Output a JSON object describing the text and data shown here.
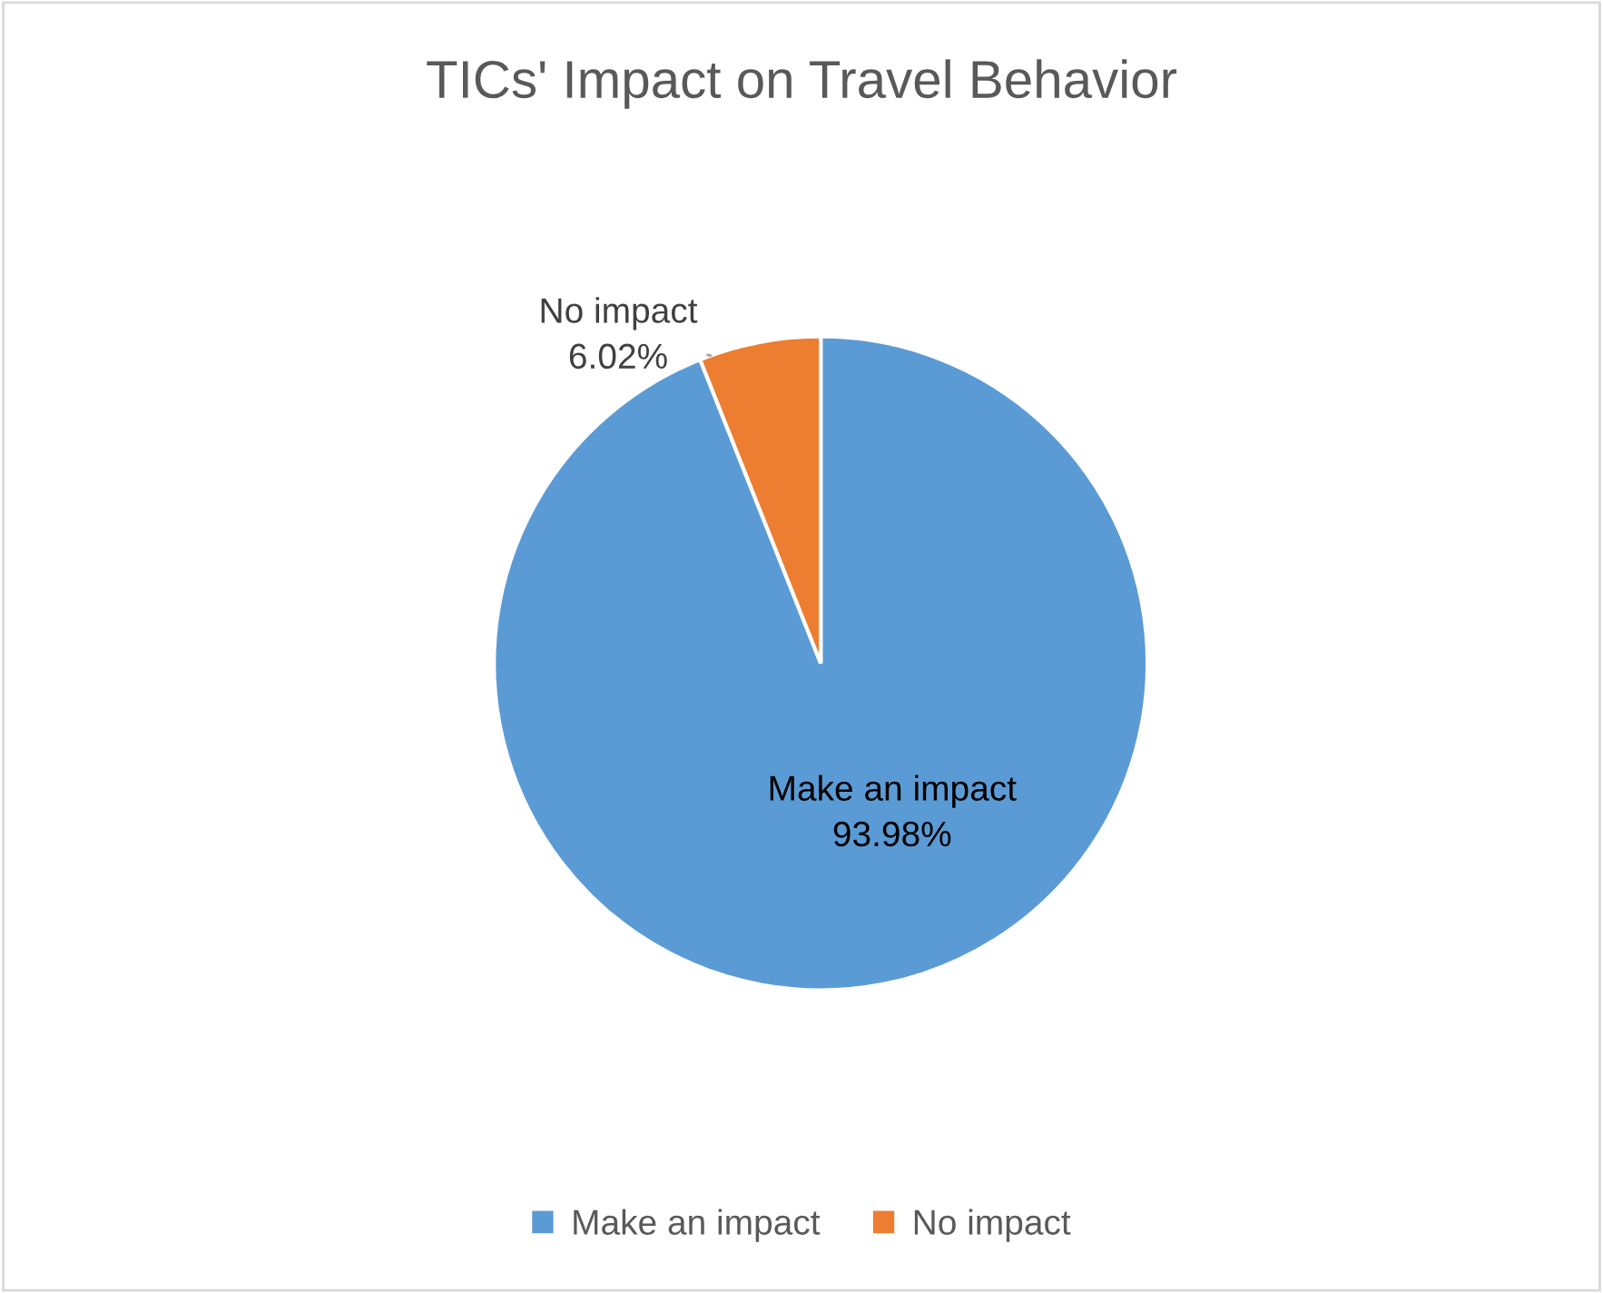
{
  "chart_data": {
    "type": "pie",
    "title": "TICs' Impact on Travel Behavior",
    "categories": [
      "Make an impact",
      "No impact"
    ],
    "values": [
      93.98,
      6.02
    ],
    "value_labels": [
      "93.98%",
      "6.02%"
    ],
    "colors": [
      "#5b9bd5",
      "#ed7d31"
    ],
    "legend": "bottom"
  }
}
